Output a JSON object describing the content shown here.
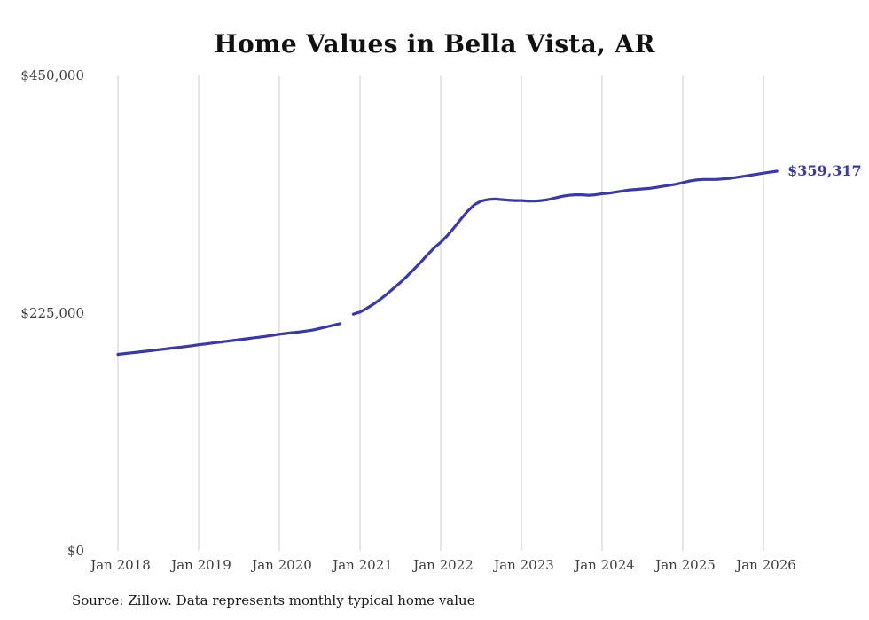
{
  "title": "Home Values in Bella Vista, AR",
  "source_note": "Source: Zillow. Data represents monthly typical home value",
  "end_label": "$359,317",
  "colors": {
    "line": "#3a3aa1",
    "grid": "#cccccc",
    "axis_text": "#3d3d3d",
    "title": "#111111"
  },
  "chart_data": {
    "type": "line",
    "title": "Home Values in Bella Vista, AR",
    "xlabel": "",
    "ylabel": "",
    "x_range": [
      "2018-01",
      "2026-03"
    ],
    "frequency": "monthly",
    "x_tick_labels": [
      "Jan 2018",
      "Jan 2019",
      "Jan 2020",
      "Jan 2021",
      "Jan 2022",
      "Jan 2023",
      "Jan 2024",
      "Jan 2025",
      "Jan 2026"
    ],
    "y_ticks": [
      0,
      225000,
      450000
    ],
    "y_tick_labels": [
      "$0",
      "$225,000",
      "$450,000"
    ],
    "ylim": [
      0,
      450000
    ],
    "grid": "vertical",
    "legend": "none",
    "final_value": 359317,
    "series": [
      {
        "name": "Typical home value",
        "values": [
          186000,
          186700,
          187400,
          188100,
          188800,
          189500,
          190300,
          191000,
          191800,
          192500,
          193300,
          194100,
          195000,
          195800,
          196600,
          197400,
          198200,
          199000,
          199800,
          200600,
          201400,
          202200,
          203000,
          204000,
          205000,
          205800,
          206500,
          207200,
          208000,
          209000,
          210500,
          212000,
          213500,
          215000,
          null,
          224000,
          226000,
          229500,
          233500,
          238000,
          243000,
          248500,
          254000,
          260000,
          266500,
          273000,
          280000,
          286500,
          292000,
          298500,
          306000,
          314000,
          321500,
          327500,
          331000,
          332500,
          333000,
          332500,
          332000,
          331500,
          331500,
          331000,
          331000,
          331500,
          332500,
          334000,
          335500,
          336500,
          337000,
          337000,
          336500,
          337000,
          338000,
          338500,
          339500,
          340500,
          341500,
          342000,
          342500,
          343000,
          344000,
          345000,
          346000,
          347000,
          348500,
          350000,
          351000,
          351500,
          351500,
          351500,
          352000,
          352500,
          353500,
          354500,
          355500,
          356500,
          357500,
          358400,
          359317
        ]
      }
    ]
  }
}
